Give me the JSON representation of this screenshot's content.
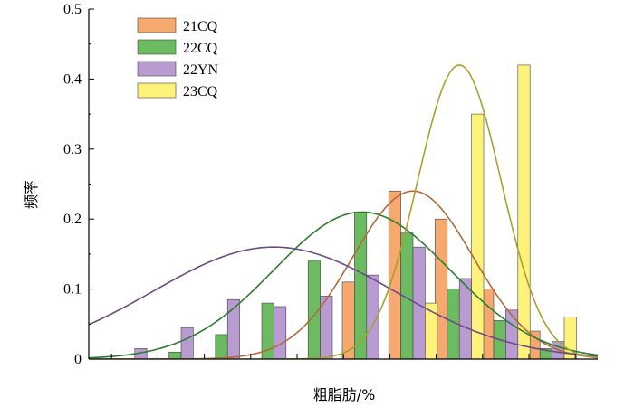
{
  "chart_data": {
    "type": "bar",
    "title": "",
    "xlabel": "粗脂肪/%",
    "ylabel": "频率",
    "ylim": [
      0,
      0.5
    ],
    "y_ticks": [
      "0",
      "0.1",
      "0.2",
      "0.3",
      "0.4",
      "0.5"
    ],
    "x_tick_labels_shown": false,
    "grid": false,
    "legend_position": "top-left",
    "categories": [
      "1",
      "2",
      "3",
      "4",
      "5",
      "6",
      "7",
      "8",
      "9",
      "10",
      "11"
    ],
    "series": [
      {
        "name": "21CQ",
        "color": "#f5a96e",
        "values": [
          0,
          0,
          0,
          0,
          0,
          0.11,
          0.24,
          0.2,
          0.1,
          0.04,
          0
        ],
        "fit": {
          "mean": 7.0,
          "sd": 1.3,
          "peak": 0.24
        }
      },
      {
        "name": "22CQ",
        "color": "#6dbb61",
        "values": [
          0,
          0.01,
          0.035,
          0.08,
          0.14,
          0.21,
          0.18,
          0.1,
          0.055,
          0.015,
          0
        ],
        "fit": {
          "mean": 5.9,
          "sd": 1.9,
          "peak": 0.21
        }
      },
      {
        "name": "22YN",
        "color": "#b89bd0",
        "values": [
          0.015,
          0.045,
          0.085,
          0.075,
          0.09,
          0.12,
          0.16,
          0.115,
          0.07,
          0.025,
          0
        ],
        "fit": {
          "mean": 4.0,
          "sd": 2.6,
          "peak": 0.16
        }
      },
      {
        "name": "23CQ",
        "color": "#fff27a",
        "values": [
          0,
          0,
          0,
          0,
          0,
          0,
          0.08,
          0.35,
          0.42,
          0.06,
          0.02
        ],
        "fit": {
          "mean": 8.0,
          "sd": 0.9,
          "peak": 0.42
        }
      }
    ]
  },
  "colors": {
    "fit_21CQ": "#b06a3a",
    "fit_22CQ": "#2e7d32",
    "fit_22YN": "#6a4c85",
    "fit_23CQ": "#a8a030",
    "axis": "#000000",
    "bar_stroke": "#444444"
  }
}
